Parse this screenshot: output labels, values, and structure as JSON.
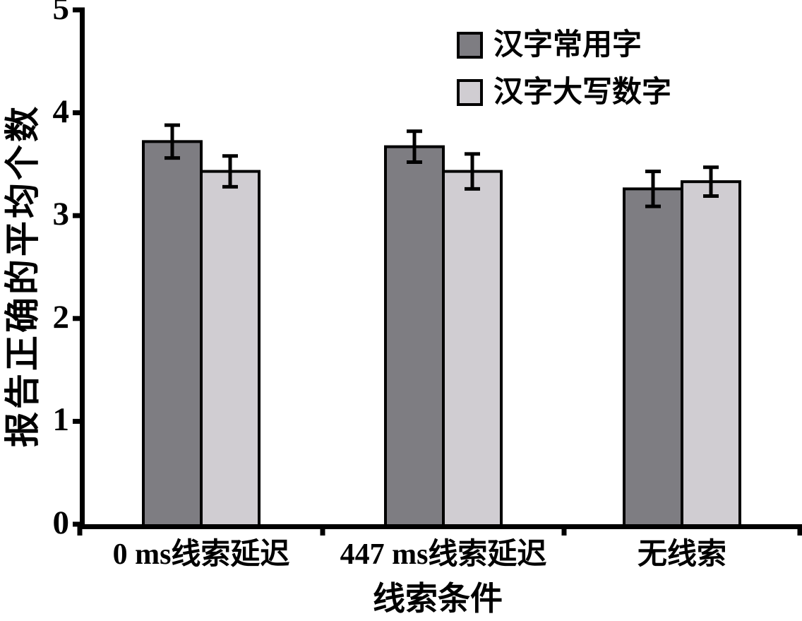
{
  "figure": {
    "background": "#ffffff",
    "axis_color": "#000000",
    "text_color": "#000000"
  },
  "chart_data": {
    "type": "bar",
    "title": "",
    "xlabel": "线索条件",
    "ylabel": "报告正确的平均个数",
    "categories": [
      "0 ms线索延迟",
      "447 ms线索延迟",
      "无线索"
    ],
    "series": [
      {
        "name": "汉字常用字",
        "color": "#7e7d82",
        "values": [
          3.72,
          3.67,
          3.26
        ],
        "errors": [
          0.16,
          0.15,
          0.17
        ]
      },
      {
        "name": "汉字大写数字",
        "color": "#d0cdd2",
        "values": [
          3.43,
          3.43,
          3.33
        ],
        "errors": [
          0.15,
          0.17,
          0.14
        ]
      }
    ],
    "ylim": [
      0,
      5
    ],
    "yticks": [
      0,
      1,
      2,
      3,
      4,
      5
    ],
    "grid": false,
    "legend_position": "top-right",
    "bar_outline_color": "#000000",
    "error_bar_color": "#000000"
  }
}
